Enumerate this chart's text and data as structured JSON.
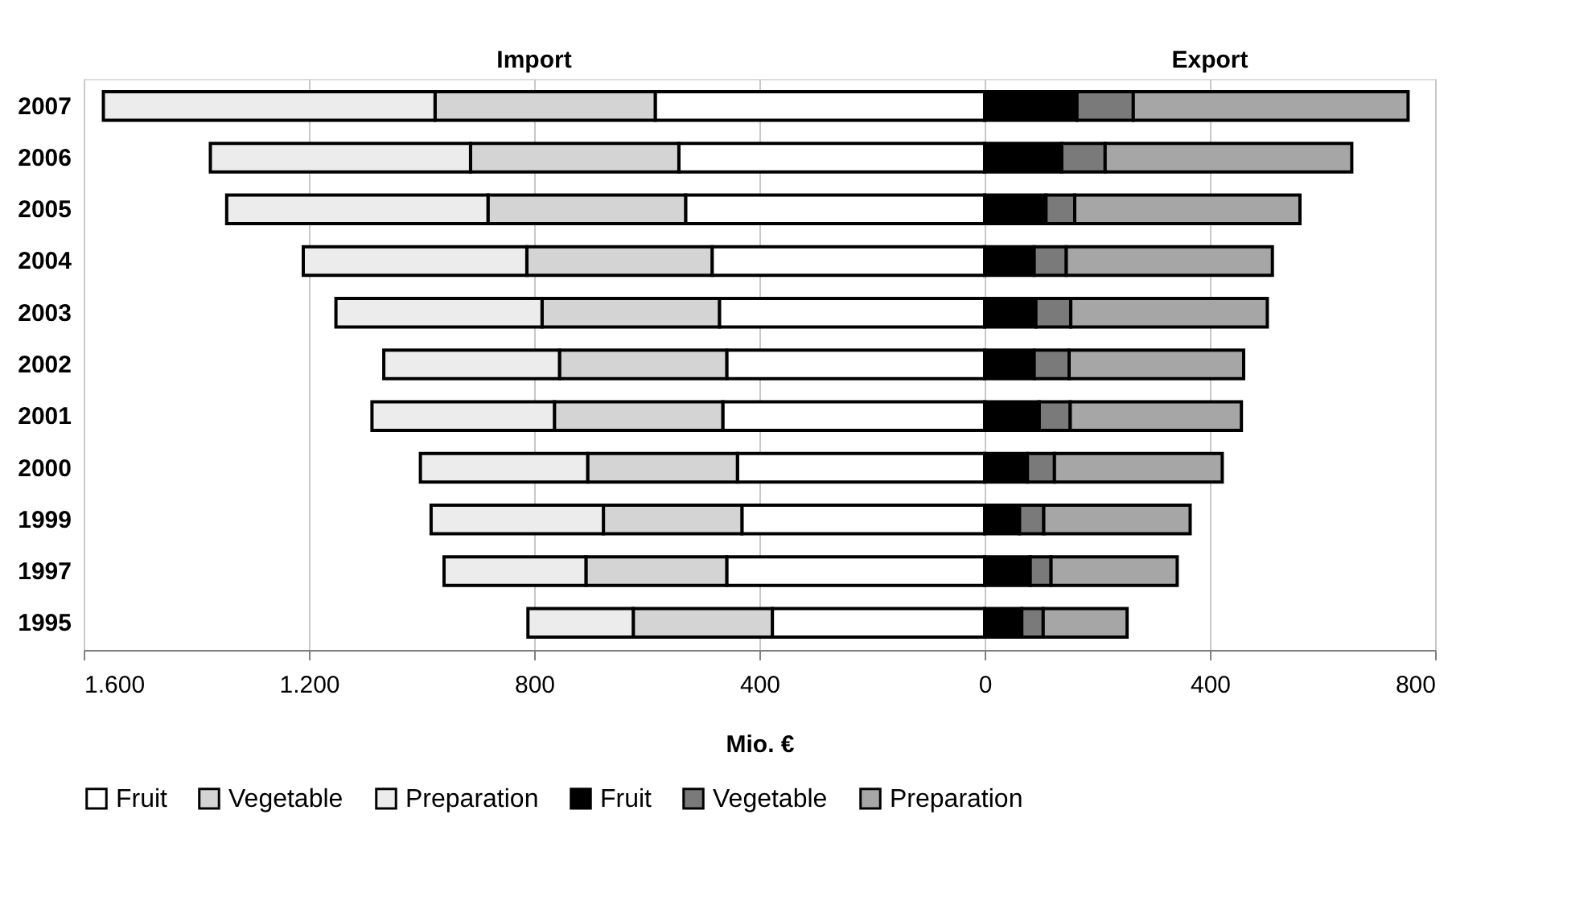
{
  "chart_data": {
    "type": "bar",
    "orientation": "horizontal",
    "stacked": true,
    "annotations": [
      "Import",
      "Export"
    ],
    "xlabel": "Mio. €",
    "categories": [
      "2007",
      "2006",
      "2005",
      "2004",
      "2003",
      "2002",
      "2001",
      "2000",
      "1999",
      "1997",
      "1995"
    ],
    "series": [
      {
        "name": "Fruit",
        "color": "#ffffff",
        "values": [
          -585,
          -543,
          -531,
          -484,
          -471,
          -458,
          -465,
          -439,
          -431,
          -458,
          -377
        ]
      },
      {
        "name": "Vegetable",
        "color": "#d4d4d4",
        "values": [
          -391,
          -370,
          -351,
          -329,
          -315,
          -297,
          -299,
          -266,
          -246,
          -250,
          -247
        ]
      },
      {
        "name": "Preparation",
        "color": "#ececec",
        "values": [
          -589,
          -462,
          -464,
          -397,
          -366,
          -312,
          -324,
          -297,
          -306,
          -252,
          -187
        ]
      },
      {
        "name": "Fruit",
        "color": "#000000",
        "values": [
          164,
          137,
          109,
          88,
          91,
          88,
          97,
          76,
          62,
          81,
          66
        ]
      },
      {
        "name": "Vegetable",
        "color": "#7a7a7a",
        "values": [
          100,
          77,
          51,
          57,
          62,
          62,
          55,
          48,
          43,
          37,
          38
        ]
      },
      {
        "name": "Preparation",
        "color": "#a6a6a6",
        "values": [
          488,
          438,
          400,
          366,
          349,
          310,
          304,
          298,
          260,
          224,
          149
        ]
      }
    ],
    "xlim": [
      -1600,
      800
    ],
    "xticks": [
      {
        "value": -1600,
        "label": "1.600"
      },
      {
        "value": -1200,
        "label": "1.200"
      },
      {
        "value": -800,
        "label": "800"
      },
      {
        "value": -400,
        "label": "400"
      },
      0,
      400,
      800
    ],
    "grid": "x",
    "legend": "bottom"
  }
}
